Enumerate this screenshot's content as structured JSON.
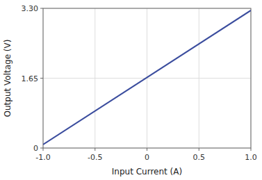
{
  "chart_data": {
    "type": "line",
    "x": [
      -1.0,
      1.0
    ],
    "values": [
      0.083,
      3.25
    ],
    "color": "#3b4d9e",
    "x_label": "Input Current (A)",
    "y_label": "Output Voltage (V)",
    "xlim": [
      -1.0,
      1.0
    ],
    "ylim": [
      0,
      3.3
    ],
    "xticks": [
      {
        "value": -1.0,
        "label": "-1.0"
      },
      -0.5,
      0,
      0.5,
      {
        "value": 1.0,
        "label": "1.0"
      }
    ],
    "yticks": [
      0,
      1.65,
      {
        "value": 3.3,
        "label": "3.30"
      }
    ],
    "grid": true
  }
}
